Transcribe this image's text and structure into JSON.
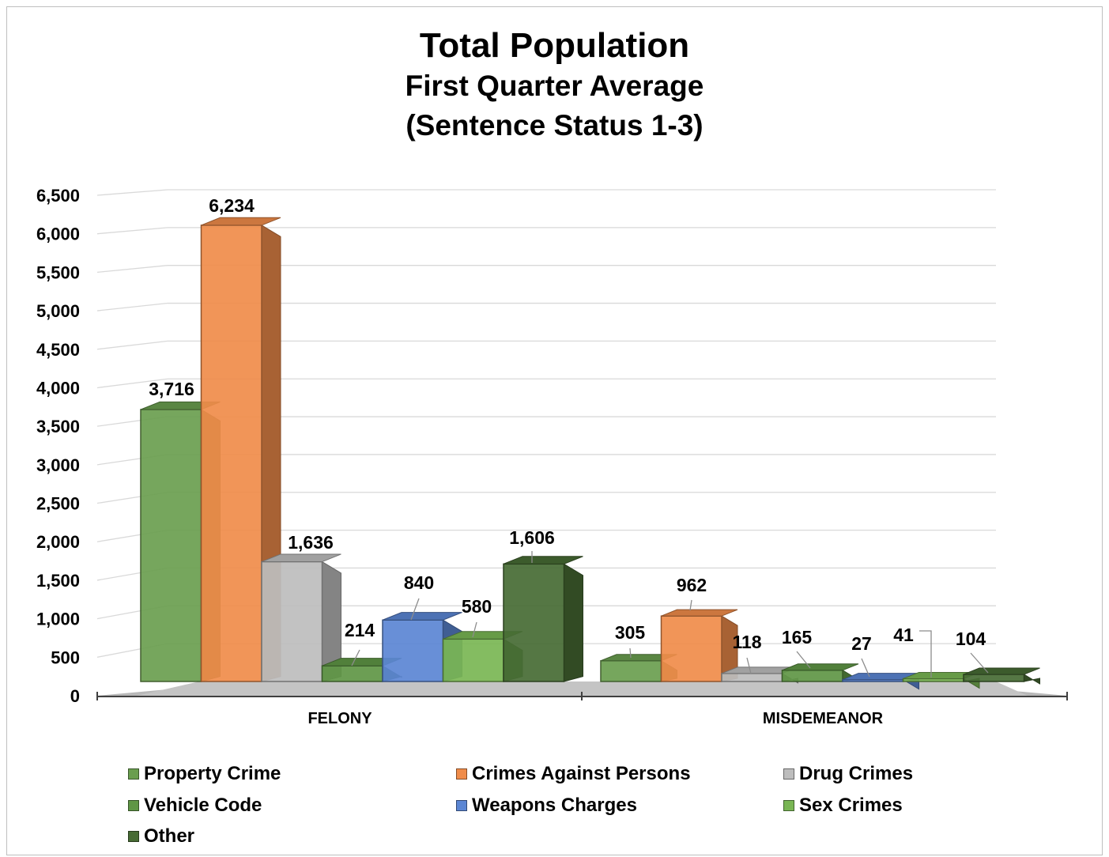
{
  "title_line1": "Total Population",
  "title_line2": "First Quarter Average",
  "title_line3": "(Sentence Status 1-3)",
  "chart_data": {
    "type": "bar",
    "categories": [
      "FELONY",
      "MISDEMEANOR"
    ],
    "series": [
      {
        "name": "Property Crime",
        "values": [
          3716,
          305
        ],
        "color": "#6a9e4f"
      },
      {
        "name": "Crimes Against Persons",
        "values": [
          6234,
          962
        ],
        "color": "#f08c4a"
      },
      {
        "name": "Drug Crimes",
        "values": [
          1636,
          118
        ],
        "color": "#bdbdbd"
      },
      {
        "name": "Vehicle Code",
        "values": [
          214,
          165
        ],
        "color": "#5f9645"
      },
      {
        "name": "Weapons Charges",
        "values": [
          840,
          27
        ],
        "color": "#5b86d4"
      },
      {
        "name": "Sex Crimes",
        "values": [
          580,
          41
        ],
        "color": "#79b654"
      },
      {
        "name": "Other",
        "values": [
          1606,
          104
        ],
        "color": "#476b34"
      }
    ],
    "data_labels": [
      [
        "3,716",
        "305"
      ],
      [
        "6,234",
        "962"
      ],
      [
        "1,636",
        "118"
      ],
      [
        "214",
        "165"
      ],
      [
        "840",
        "27"
      ],
      [
        "580",
        "41"
      ],
      [
        "1,606",
        "104"
      ]
    ],
    "yticks": [
      "0",
      "500",
      "1,000",
      "1,500",
      "2,000",
      "2,500",
      "3,000",
      "3,500",
      "4,000",
      "4,500",
      "5,000",
      "5,500",
      "6,000",
      "6,500"
    ],
    "ylim": [
      0,
      6500
    ],
    "ytick_step": 500,
    "grid": true,
    "style": "3d-clustered-column",
    "legend_position": "bottom"
  }
}
